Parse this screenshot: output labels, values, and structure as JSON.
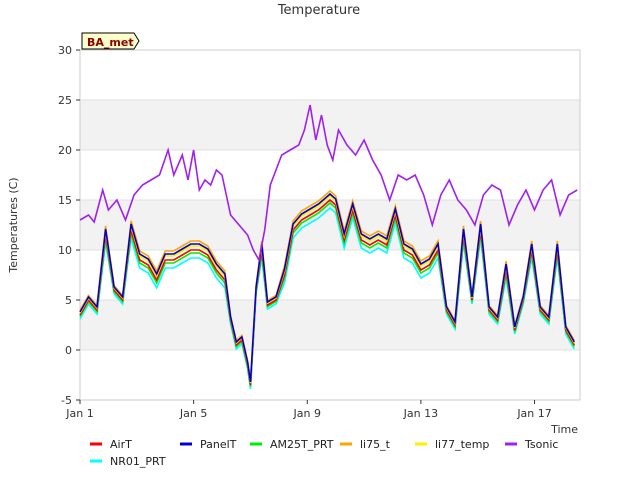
{
  "chart_data": {
    "type": "line",
    "title": "Temperature",
    "xlabel": "Time",
    "ylabel": "Temperatures (C)",
    "badge": "BA_met",
    "ylim": [
      -5,
      30
    ],
    "xlim": [
      0,
      17.6
    ],
    "yticks": [
      -5,
      0,
      5,
      10,
      15,
      20,
      25,
      30
    ],
    "xticks": [
      {
        "label": "Jan 1",
        "day": 0
      },
      {
        "label": "Jan 5",
        "day": 4
      },
      {
        "label": "Jan 9",
        "day": 8
      },
      {
        "label": "Jan 13",
        "day": 12
      },
      {
        "label": "Jan 17",
        "day": 16
      }
    ],
    "grid": true,
    "legend_position": "bottom",
    "series": [
      {
        "name": "AirT",
        "color": "#ff0000",
        "offset": 0.0
      },
      {
        "name": "PanelT",
        "color": "#0000cc",
        "offset": 0.6
      },
      {
        "name": "AM25T_PRT",
        "color": "#00ee00",
        "offset": -0.3
      },
      {
        "name": "li75_t",
        "color": "#ffa500",
        "offset": 0.9
      },
      {
        "name": "li77_temp",
        "color": "#ffee00",
        "offset": 0.4
      },
      {
        "name": "Tsonic",
        "color": "#a020f0",
        "offset": 0.0
      },
      {
        "name": "NR01_PRT",
        "color": "#00ffff",
        "offset": -0.8
      }
    ],
    "base_series": {
      "day": [
        0,
        0.3,
        0.6,
        0.9,
        1.2,
        1.5,
        1.8,
        2.1,
        2.4,
        2.7,
        3.0,
        3.3,
        3.6,
        3.9,
        4.2,
        4.5,
        4.8,
        5.1,
        5.3,
        5.5,
        5.7,
        5.9,
        6.0,
        6.2,
        6.4,
        6.6,
        6.9,
        7.2,
        7.5,
        7.8,
        8.1,
        8.4,
        8.6,
        8.8,
        9.0,
        9.3,
        9.6,
        9.9,
        10.2,
        10.5,
        10.8,
        11.1,
        11.4,
        11.7,
        12.0,
        12.3,
        12.6,
        12.9,
        13.2,
        13.5,
        13.8,
        14.1,
        14.4,
        14.7,
        15.0,
        15.3,
        15.6,
        15.9,
        16.2,
        16.5,
        16.8,
        17.1,
        17.4
      ],
      "values": [
        3.5,
        5.0,
        4.0,
        11.5,
        6.0,
        5.0,
        12.0,
        9.0,
        8.5,
        7.0,
        9.0,
        9.0,
        9.5,
        10.0,
        10.0,
        9.5,
        8.0,
        7.0,
        3.0,
        0.5,
        1.0,
        -1.5,
        -3.5,
        6.0,
        10.0,
        4.5,
        5.0,
        7.5,
        12.0,
        13.0,
        13.5,
        14.0,
        14.5,
        15.0,
        14.5,
        11.0,
        14.0,
        11.0,
        10.5,
        11.0,
        10.5,
        13.5,
        10.0,
        9.5,
        8.0,
        8.5,
        10.0,
        4.0,
        2.5,
        11.5,
        5.0,
        12.0,
        4.0,
        3.0,
        8.0,
        2.0,
        5.0,
        10.0,
        4.0,
        3.0,
        10.0,
        2.0,
        0.5
      ]
    },
    "tsonic_values": {
      "day": [
        0,
        0.3,
        0.5,
        0.8,
        1.0,
        1.3,
        1.6,
        1.9,
        2.2,
        2.5,
        2.8,
        3.1,
        3.3,
        3.6,
        3.8,
        4.0,
        4.2,
        4.4,
        4.6,
        4.8,
        5.0,
        5.3,
        5.6,
        5.9,
        6.1,
        6.3,
        6.5,
        6.7,
        6.9,
        7.1,
        7.4,
        7.7,
        7.9,
        8.1,
        8.3,
        8.5,
        8.7,
        8.9,
        9.1,
        9.4,
        9.7,
        10.0,
        10.3,
        10.6,
        10.9,
        11.2,
        11.5,
        11.8,
        12.1,
        12.4,
        12.7,
        13.0,
        13.3,
        13.6,
        13.9,
        14.2,
        14.5,
        14.8,
        15.1,
        15.4,
        15.7,
        16.0,
        16.3,
        16.6,
        16.9,
        17.2,
        17.5
      ],
      "values": [
        13.0,
        13.5,
        12.8,
        16.0,
        14.0,
        15.0,
        13.0,
        15.5,
        16.5,
        17.0,
        17.5,
        20.0,
        17.5,
        19.5,
        17.0,
        20.0,
        16.0,
        17.0,
        16.5,
        18.0,
        17.5,
        13.5,
        12.5,
        11.5,
        10.0,
        9.0,
        12.0,
        16.5,
        18.0,
        19.5,
        20.0,
        20.5,
        22.0,
        24.5,
        21.0,
        23.5,
        20.5,
        19.0,
        22.0,
        20.5,
        19.5,
        21.0,
        19.0,
        17.5,
        15.0,
        17.5,
        17.0,
        17.5,
        15.5,
        12.5,
        15.5,
        17.0,
        15.0,
        14.0,
        12.5,
        15.5,
        16.5,
        16.0,
        12.5,
        14.5,
        16.0,
        14.0,
        16.0,
        17.0,
        13.5,
        15.5,
        16.0
      ]
    }
  }
}
